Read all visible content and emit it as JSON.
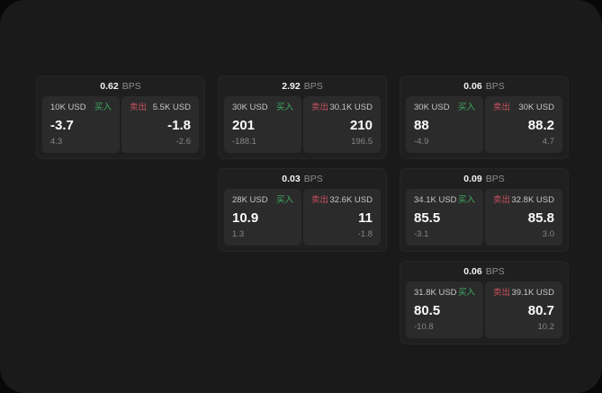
{
  "labels": {
    "buy": "买入",
    "sell": "卖出",
    "bps_unit": "BPS"
  },
  "colors": {
    "buy": "#3fae63",
    "sell": "#c9515e",
    "panel_bg": "#1a1a1a",
    "card_bg": "#1f1f1f",
    "tile_bg": "#2b2b2b"
  },
  "cards": [
    {
      "row": 1,
      "col": 1,
      "bps": "0.62",
      "buy": {
        "amount": "10K USD",
        "price": "-3.7",
        "delta": "4.3"
      },
      "sell": {
        "amount": "5.5K USD",
        "price": "-1.8",
        "delta": "-2.6"
      }
    },
    {
      "row": 1,
      "col": 2,
      "bps": "2.92",
      "buy": {
        "amount": "30K USD",
        "price": "201",
        "delta": "-188.1"
      },
      "sell": {
        "amount": "30.1K USD",
        "price": "210",
        "delta": "196.5"
      }
    },
    {
      "row": 1,
      "col": 3,
      "bps": "0.06",
      "buy": {
        "amount": "30K USD",
        "price": "88",
        "delta": "-4.9"
      },
      "sell": {
        "amount": "30K USD",
        "price": "88.2",
        "delta": "4.7"
      }
    },
    {
      "row": 2,
      "col": 2,
      "bps": "0.03",
      "buy": {
        "amount": "28K USD",
        "price": "10.9",
        "delta": "1.3"
      },
      "sell": {
        "amount": "32.6K USD",
        "price": "11",
        "delta": "-1.8"
      }
    },
    {
      "row": 2,
      "col": 3,
      "bps": "0.09",
      "buy": {
        "amount": "34.1K USD",
        "price": "85.5",
        "delta": "-3.1"
      },
      "sell": {
        "amount": "32.8K USD",
        "price": "85.8",
        "delta": "3.0"
      }
    },
    {
      "row": 3,
      "col": 3,
      "bps": "0.06",
      "buy": {
        "amount": "31.8K USD",
        "price": "80.5",
        "delta": "-10.8"
      },
      "sell": {
        "amount": "39.1K USD",
        "price": "80.7",
        "delta": "10.2"
      }
    }
  ]
}
